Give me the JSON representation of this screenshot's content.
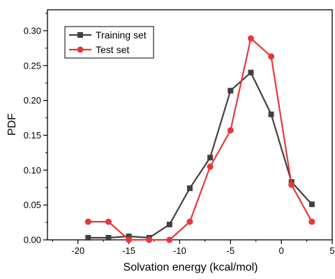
{
  "chart_data": {
    "type": "line",
    "title": "",
    "xlabel": "Solvation energy (kcal/mol)",
    "ylabel": "PDF",
    "xlim": [
      -23,
      5
    ],
    "ylim": [
      0,
      0.33
    ],
    "x_ticks": [
      -20,
      -15,
      -10,
      -5,
      0,
      5
    ],
    "x_tick_labels": [
      "-20",
      "-15",
      "-10",
      "-5",
      "0",
      "5"
    ],
    "y_ticks": [
      0,
      0.05,
      0.1,
      0.15,
      0.2,
      0.25,
      0.3
    ],
    "y_tick_labels": [
      "0.00",
      "0.05",
      "0.10",
      "0.15",
      "0.20",
      "0.25",
      "0.30"
    ],
    "grid": false,
    "legend_position": "top-left",
    "series": [
      {
        "name": "Training set",
        "color": "#404040",
        "marker": "square",
        "x": [
          -19,
          -17,
          -15,
          -13,
          -11,
          -9,
          -7,
          -5,
          -3,
          -1,
          1,
          3
        ],
        "y": [
          0.003,
          0.003,
          0.005,
          0.003,
          0.022,
          0.074,
          0.118,
          0.214,
          0.24,
          0.18,
          0.083,
          0.051
        ]
      },
      {
        "name": "Test set",
        "color": "#e8373a",
        "marker": "circle",
        "x": [
          -19,
          -17,
          -15,
          -13,
          -11,
          -9,
          -7,
          -5,
          -3,
          -1,
          1,
          3
        ],
        "y": [
          0.026,
          0.026,
          0.0,
          0.0,
          0.0,
          0.026,
          0.105,
          0.157,
          0.289,
          0.263,
          0.079,
          0.026
        ]
      }
    ]
  }
}
